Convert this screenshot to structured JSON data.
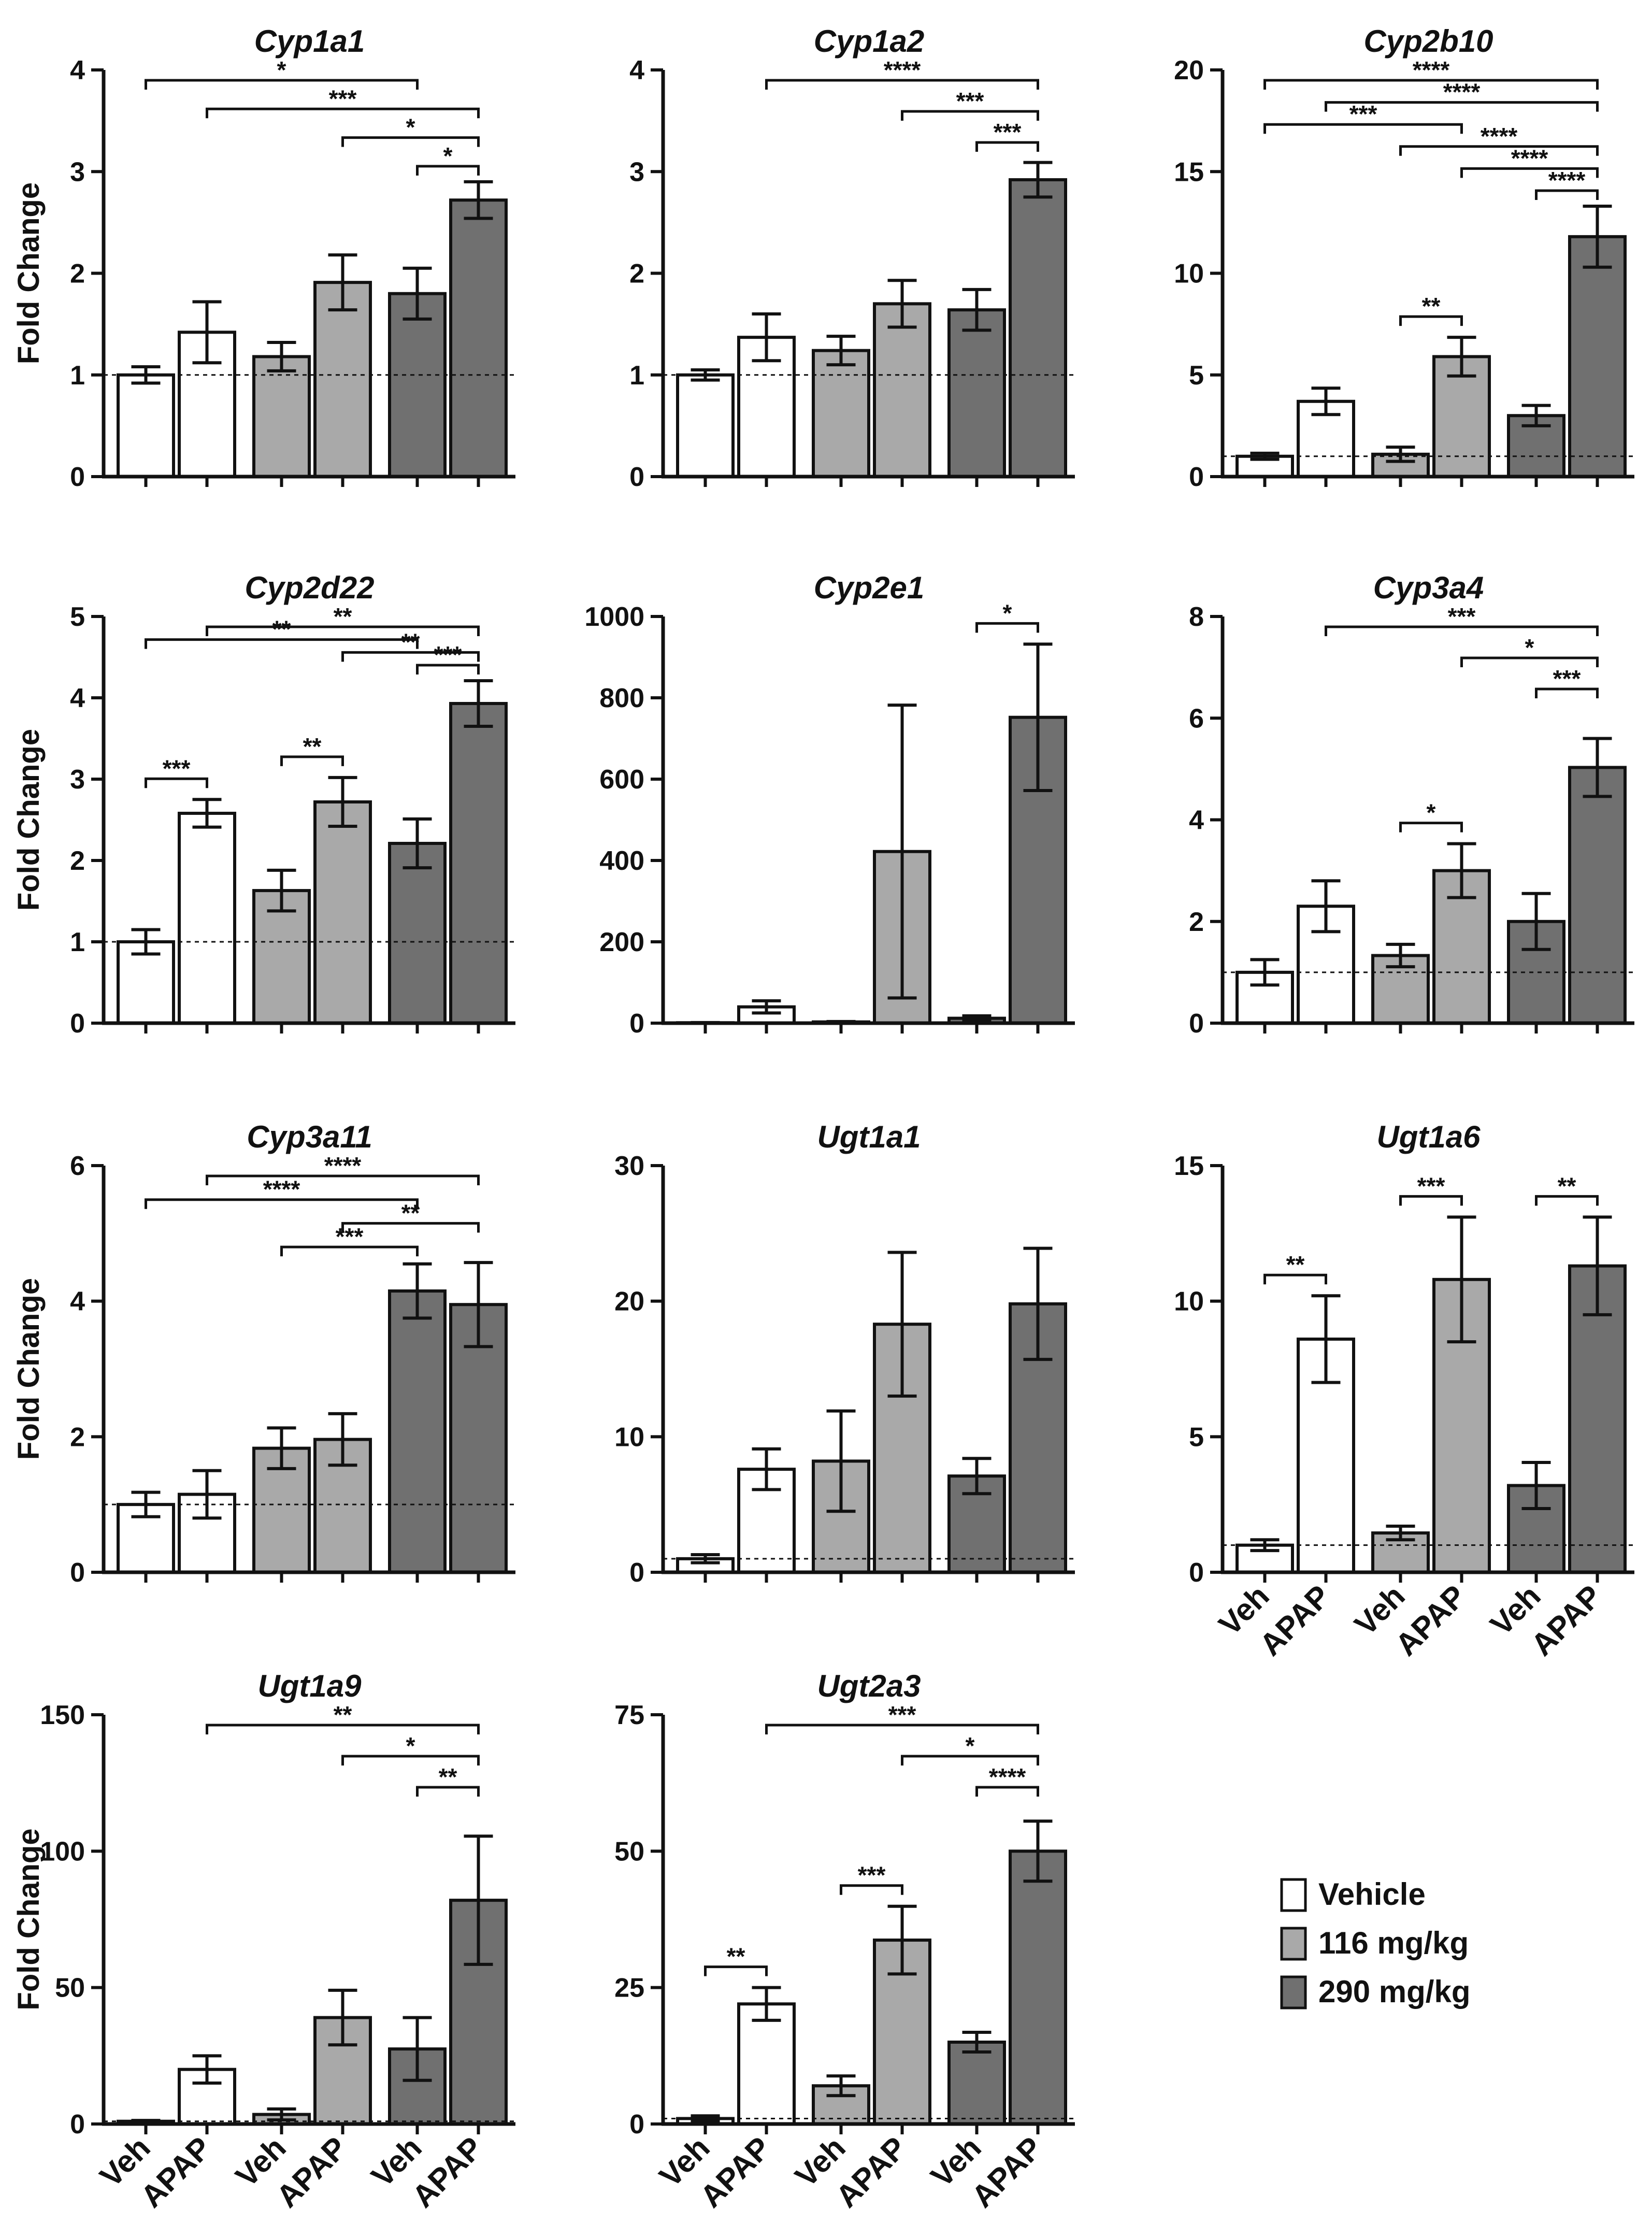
{
  "figure": {
    "ylabel": "Fold Change",
    "groups": [
      "Vehicle",
      "116 mg/kg",
      "290 mg/kg"
    ],
    "group_colors": [
      "#ffffff",
      "#a9a9a9",
      "#707070"
    ],
    "xlabels": [
      "Veh",
      "APAP",
      "Veh",
      "APAP",
      "Veh",
      "APAP"
    ],
    "legend": {
      "items": [
        {
          "label": "Vehicle",
          "color": "#ffffff"
        },
        {
          "label": "116 mg/kg",
          "color": "#a9a9a9"
        },
        {
          "label": "290 mg/kg",
          "color": "#707070"
        }
      ]
    }
  },
  "chart_data": [
    {
      "type": "bar",
      "title": "Cyp1a1",
      "ylabel": "Fold Change",
      "ylim": [
        0,
        4
      ],
      "yticks": [
        0,
        1,
        2,
        3,
        4
      ],
      "reference_line": 1,
      "categories": [
        "Veh",
        "APAP",
        "Veh",
        "APAP",
        "Veh",
        "APAP"
      ],
      "values": [
        1.0,
        1.42,
        1.18,
        1.91,
        1.8,
        2.72
      ],
      "errors": [
        0.08,
        0.3,
        0.14,
        0.27,
        0.25,
        0.18
      ],
      "significance": [
        {
          "from": 1,
          "to": 5,
          "label": "*"
        },
        {
          "from": 2,
          "to": 6,
          "label": "***"
        },
        {
          "from": 4,
          "to": 6,
          "label": "*"
        },
        {
          "from": 5,
          "to": 6,
          "label": "*"
        }
      ]
    },
    {
      "type": "bar",
      "title": "Cyp1a2",
      "ylabel": "",
      "ylim": [
        0,
        4
      ],
      "yticks": [
        0,
        1,
        2,
        3,
        4
      ],
      "reference_line": 1,
      "categories": [
        "Veh",
        "APAP",
        "Veh",
        "APAP",
        "Veh",
        "APAP"
      ],
      "values": [
        1.0,
        1.37,
        1.24,
        1.7,
        1.64,
        2.92
      ],
      "errors": [
        0.05,
        0.23,
        0.14,
        0.23,
        0.2,
        0.17
      ],
      "significance": [
        {
          "from": 2,
          "to": 6,
          "label": "****"
        },
        {
          "from": 4,
          "to": 6,
          "label": "***"
        },
        {
          "from": 5,
          "to": 6,
          "label": "***"
        }
      ]
    },
    {
      "type": "bar",
      "title": "Cyp2b10",
      "ylabel": "",
      "ylim": [
        0,
        20
      ],
      "yticks": [
        0,
        5,
        10,
        15,
        20
      ],
      "reference_line": 1,
      "categories": [
        "Veh",
        "APAP",
        "Veh",
        "APAP",
        "Veh",
        "APAP"
      ],
      "values": [
        1.0,
        3.7,
        1.1,
        5.9,
        3.0,
        11.8
      ],
      "errors": [
        0.15,
        0.65,
        0.35,
        0.95,
        0.5,
        1.5
      ],
      "significance": [
        {
          "from": 1,
          "to": 6,
          "label": "****"
        },
        {
          "from": 1,
          "to": 4,
          "label": "***"
        },
        {
          "from": 2,
          "to": 6,
          "label": "****"
        },
        {
          "from": 3,
          "to": 6,
          "label": "****"
        },
        {
          "from": 4,
          "to": 6,
          "label": "****"
        },
        {
          "from": 5,
          "to": 6,
          "label": "****"
        },
        {
          "from": 3,
          "to": 4,
          "label": "**"
        }
      ]
    },
    {
      "type": "bar",
      "title": "Cyp2d22",
      "ylabel": "Fold Change",
      "ylim": [
        0,
        5
      ],
      "yticks": [
        0,
        1,
        2,
        3,
        4,
        5
      ],
      "reference_line": 1,
      "categories": [
        "Veh",
        "APAP",
        "Veh",
        "APAP",
        "Veh",
        "APAP"
      ],
      "values": [
        1.0,
        2.58,
        1.63,
        2.72,
        2.21,
        3.93
      ],
      "errors": [
        0.15,
        0.17,
        0.25,
        0.3,
        0.3,
        0.28
      ],
      "significance": [
        {
          "from": 2,
          "to": 6,
          "label": "**"
        },
        {
          "from": 4,
          "to": 6,
          "label": "**"
        },
        {
          "from": 5,
          "to": 6,
          "label": "***"
        },
        {
          "from": 1,
          "to": 5,
          "label": "**"
        },
        {
          "from": 1,
          "to": 2,
          "label": "***"
        },
        {
          "from": 3,
          "to": 4,
          "label": "**"
        }
      ]
    },
    {
      "type": "bar",
      "title": "Cyp2e1",
      "ylabel": "",
      "ylim": [
        0,
        1000
      ],
      "yticks": [
        0,
        200,
        400,
        600,
        800,
        1000
      ],
      "reference_line": 1,
      "categories": [
        "Veh",
        "APAP",
        "Veh",
        "APAP",
        "Veh",
        "APAP"
      ],
      "values": [
        1,
        40,
        3,
        422,
        12,
        752
      ],
      "errors": [
        0.5,
        15,
        1,
        360,
        6,
        180
      ],
      "significance": [
        {
          "from": 5,
          "to": 6,
          "label": "*"
        }
      ]
    },
    {
      "type": "bar",
      "title": "Cyp3a4",
      "ylabel": "",
      "ylim": [
        0,
        8
      ],
      "yticks": [
        0,
        2,
        4,
        6,
        8
      ],
      "reference_line": 1,
      "categories": [
        "Veh",
        "APAP",
        "Veh",
        "APAP",
        "Veh",
        "APAP"
      ],
      "values": [
        1.0,
        2.3,
        1.33,
        3.0,
        2.0,
        5.03
      ],
      "errors": [
        0.25,
        0.5,
        0.22,
        0.53,
        0.55,
        0.57
      ],
      "significance": [
        {
          "from": 2,
          "to": 6,
          "label": "***"
        },
        {
          "from": 4,
          "to": 6,
          "label": "*"
        },
        {
          "from": 5,
          "to": 6,
          "label": "***"
        },
        {
          "from": 3,
          "to": 4,
          "label": "*"
        }
      ]
    },
    {
      "type": "bar",
      "title": "Cyp3a11",
      "ylabel": "Fold Change",
      "ylim": [
        0,
        6
      ],
      "yticks": [
        0,
        2,
        4,
        6
      ],
      "reference_line": 1,
      "categories": [
        "Veh",
        "APAP",
        "Veh",
        "APAP",
        "Veh",
        "APAP"
      ],
      "values": [
        1.0,
        1.15,
        1.83,
        1.96,
        4.15,
        3.95
      ],
      "errors": [
        0.18,
        0.35,
        0.3,
        0.38,
        0.4,
        0.62
      ],
      "significance": [
        {
          "from": 2,
          "to": 6,
          "label": "****"
        },
        {
          "from": 4,
          "to": 6,
          "label": "**"
        },
        {
          "from": 1,
          "to": 5,
          "label": "****"
        },
        {
          "from": 3,
          "to": 5,
          "label": "***"
        }
      ]
    },
    {
      "type": "bar",
      "title": "Ugt1a1",
      "ylabel": "",
      "ylim": [
        0,
        30
      ],
      "yticks": [
        0,
        10,
        20,
        30
      ],
      "reference_line": 1,
      "categories": [
        "Veh",
        "APAP",
        "Veh",
        "APAP",
        "Veh",
        "APAP"
      ],
      "values": [
        1.0,
        7.6,
        8.2,
        18.3,
        7.1,
        19.8
      ],
      "errors": [
        0.3,
        1.5,
        3.7,
        5.3,
        1.3,
        4.1
      ],
      "significance": []
    },
    {
      "type": "bar",
      "title": "Ugt1a6",
      "ylabel": "",
      "ylim": [
        0,
        15
      ],
      "yticks": [
        0,
        5,
        10,
        15
      ],
      "reference_line": 1,
      "categories": [
        "Veh",
        "APAP",
        "Veh",
        "APAP",
        "Veh",
        "APAP"
      ],
      "values": [
        1.0,
        8.6,
        1.45,
        10.8,
        3.2,
        11.3
      ],
      "errors": [
        0.2,
        1.6,
        0.25,
        2.3,
        0.85,
        1.8
      ],
      "significance": [
        {
          "from": 1,
          "to": 2,
          "label": "**"
        },
        {
          "from": 3,
          "to": 4,
          "label": "***"
        },
        {
          "from": 5,
          "to": 6,
          "label": "**"
        }
      ],
      "xlabels_shown": true
    },
    {
      "type": "bar",
      "title": "Ugt1a9",
      "ylabel": "Fold Change",
      "ylim": [
        0,
        150
      ],
      "yticks": [
        0,
        50,
        100,
        150
      ],
      "reference_line": 1,
      "categories": [
        "Veh",
        "APAP",
        "Veh",
        "APAP",
        "Veh",
        "APAP"
      ],
      "values": [
        1.0,
        20,
        3.5,
        39,
        27.5,
        82
      ],
      "errors": [
        0.3,
        5,
        2,
        10,
        11.5,
        23.5
      ],
      "significance": [
        {
          "from": 2,
          "to": 6,
          "label": "**"
        },
        {
          "from": 4,
          "to": 6,
          "label": "*"
        },
        {
          "from": 5,
          "to": 6,
          "label": "**"
        }
      ],
      "xlabels_shown": true
    },
    {
      "type": "bar",
      "title": "Ugt2a3",
      "ylabel": "",
      "ylim": [
        0,
        75
      ],
      "yticks": [
        0,
        25,
        50,
        75
      ],
      "reference_line": 1,
      "categories": [
        "Veh",
        "APAP",
        "Veh",
        "APAP",
        "Veh",
        "APAP"
      ],
      "values": [
        1.0,
        22,
        7,
        33.7,
        15,
        50
      ],
      "errors": [
        0.5,
        3,
        1.8,
        6.2,
        1.8,
        5.5
      ],
      "significance": [
        {
          "from": 2,
          "to": 6,
          "label": "***"
        },
        {
          "from": 4,
          "to": 6,
          "label": "*"
        },
        {
          "from": 5,
          "to": 6,
          "label": "****"
        },
        {
          "from": 1,
          "to": 2,
          "label": "**"
        },
        {
          "from": 3,
          "to": 4,
          "label": "***"
        }
      ],
      "xlabels_shown": true
    }
  ]
}
